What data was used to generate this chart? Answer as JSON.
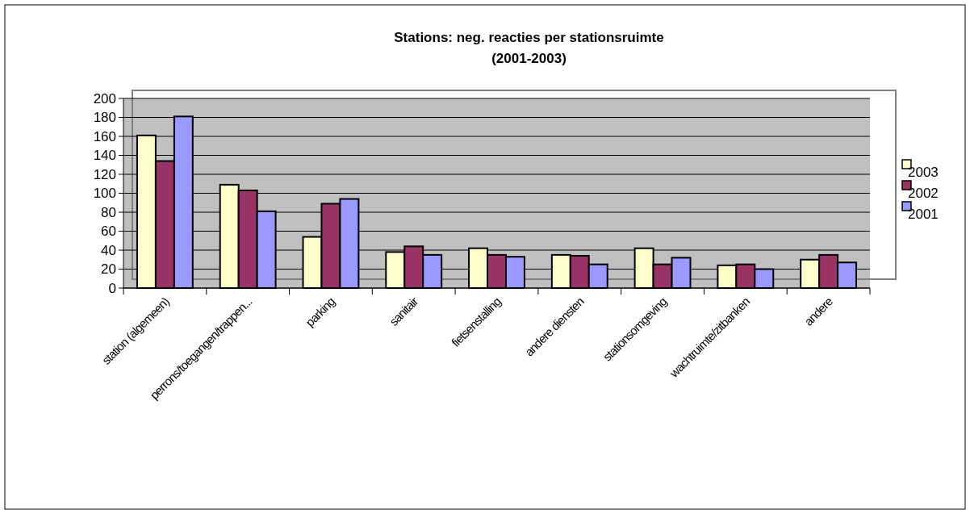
{
  "chart_data": {
    "type": "bar",
    "title": "Stations: neg. reacties per stationsruimte\n(2001-2003)",
    "categories": [
      "station (algemeen)",
      "perrons/toegangen/trappen...",
      "parking",
      "sanitair",
      "fietsenstalling",
      "andere diensten",
      "stationsomgeving",
      "wachtruimte/zitbanken",
      "andere"
    ],
    "series": [
      {
        "name": "2003",
        "color": "#ffffcc",
        "values": [
          161,
          109,
          54,
          38,
          42,
          35,
          42,
          24,
          30
        ]
      },
      {
        "name": "2002",
        "color": "#993366",
        "values": [
          134,
          103,
          89,
          44,
          35,
          34,
          25,
          25,
          35
        ]
      },
      {
        "name": "2001",
        "color": "#9999ff",
        "values": [
          181,
          81,
          94,
          35,
          33,
          25,
          32,
          20,
          27
        ]
      }
    ],
    "ylim": [
      0,
      200
    ],
    "yticks": [
      0,
      20,
      40,
      60,
      80,
      100,
      120,
      140,
      160,
      180,
      200
    ],
    "grid": "y",
    "legend": "right"
  }
}
